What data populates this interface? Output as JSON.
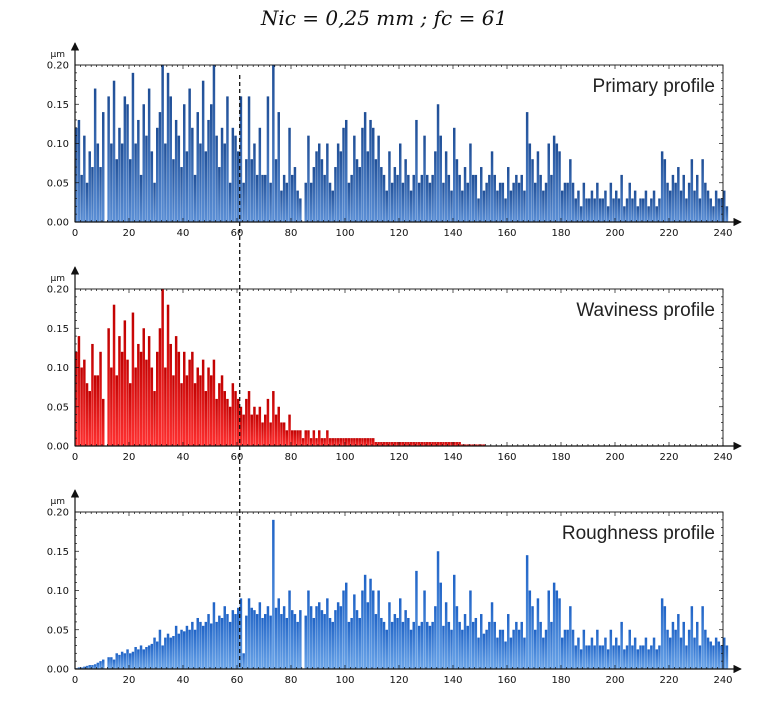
{
  "figure": {
    "title": "Nic = 0,25 mm ; fc = 61",
    "cutoff_index": 61
  },
  "chart_data": [
    {
      "type": "bar",
      "label": "Primary profile",
      "color_top": "#1f4e96",
      "color_bottom": "#5b8fd6",
      "unit": "µm",
      "xlim": [
        0,
        240
      ],
      "ylim": [
        0,
        0.2
      ],
      "x_ticks": [
        "0",
        "20",
        "40",
        "60",
        "80",
        "100",
        "120",
        "140",
        "160",
        "180",
        "200",
        "220",
        "240"
      ],
      "y_ticks": [
        "0.00",
        "0.05",
        "0.10",
        "0.15",
        "0.20"
      ],
      "values": [
        0.12,
        0.13,
        0.06,
        0.11,
        0.05,
        0.09,
        0.07,
        0.17,
        0.1,
        0.07,
        0.14,
        0.0,
        0.16,
        0.1,
        0.18,
        0.08,
        0.12,
        0.1,
        0.16,
        0.15,
        0.08,
        0.19,
        0.1,
        0.13,
        0.06,
        0.15,
        0.11,
        0.17,
        0.09,
        0.05,
        0.12,
        0.14,
        0.2,
        0.1,
        0.19,
        0.16,
        0.08,
        0.13,
        0.11,
        0.07,
        0.15,
        0.09,
        0.17,
        0.12,
        0.06,
        0.14,
        0.1,
        0.18,
        0.09,
        0.13,
        0.15,
        0.2,
        0.11,
        0.07,
        0.12,
        0.1,
        0.16,
        0.05,
        0.12,
        0.11,
        0.09,
        0.16,
        0.05,
        0.08,
        0.16,
        0.08,
        0.1,
        0.06,
        0.12,
        0.06,
        0.06,
        0.16,
        0.05,
        0.2,
        0.08,
        0.14,
        0.04,
        0.06,
        0.05,
        0.12,
        0.06,
        0.07,
        0.04,
        0.03,
        0.0,
        0.05,
        0.11,
        0.05,
        0.07,
        0.09,
        0.1,
        0.08,
        0.06,
        0.1,
        0.05,
        0.04,
        0.07,
        0.1,
        0.09,
        0.12,
        0.13,
        0.05,
        0.06,
        0.11,
        0.08,
        0.07,
        0.12,
        0.14,
        0.09,
        0.13,
        0.12,
        0.08,
        0.11,
        0.07,
        0.06,
        0.04,
        0.09,
        0.05,
        0.07,
        0.06,
        0.1,
        0.05,
        0.08,
        0.06,
        0.04,
        0.06,
        0.13,
        0.05,
        0.06,
        0.11,
        0.06,
        0.05,
        0.06,
        0.09,
        0.15,
        0.11,
        0.05,
        0.09,
        0.06,
        0.04,
        0.12,
        0.08,
        0.06,
        0.04,
        0.07,
        0.05,
        0.1,
        0.06,
        0.06,
        0.03,
        0.07,
        0.04,
        0.05,
        0.06,
        0.09,
        0.06,
        0.04,
        0.05,
        0.05,
        0.03,
        0.07,
        0.04,
        0.05,
        0.06,
        0.05,
        0.06,
        0.04,
        0.14,
        0.1,
        0.08,
        0.05,
        0.09,
        0.06,
        0.04,
        0.05,
        0.1,
        0.06,
        0.11,
        0.1,
        0.09,
        0.04,
        0.05,
        0.05,
        0.08,
        0.05,
        0.03,
        0.04,
        0.02,
        0.05,
        0.03,
        0.03,
        0.04,
        0.03,
        0.05,
        0.03,
        0.03,
        0.04,
        0.02,
        0.05,
        0.03,
        0.04,
        0.03,
        0.06,
        0.02,
        0.03,
        0.05,
        0.03,
        0.04,
        0.02,
        0.03,
        0.03,
        0.04,
        0.02,
        0.03,
        0.04,
        0.02,
        0.03,
        0.09,
        0.08,
        0.05,
        0.04,
        0.06,
        0.05,
        0.07,
        0.04,
        0.06,
        0.03,
        0.05,
        0.08,
        0.04,
        0.06,
        0.03,
        0.08,
        0.05,
        0.04,
        0.03,
        0.02,
        0.04,
        0.03,
        0.03,
        0.04,
        0.02
      ]
    },
    {
      "type": "bar",
      "label": "Waviness profile",
      "color_top": "#c00000",
      "color_bottom": "#ff3030",
      "unit": "µm",
      "xlim": [
        0,
        240
      ],
      "ylim": [
        0,
        0.2
      ],
      "x_ticks": [
        "0",
        "20",
        "40",
        "60",
        "80",
        "100",
        "120",
        "140",
        "160",
        "180",
        "200",
        "220",
        "240"
      ],
      "y_ticks": [
        "0.00",
        "0.05",
        "0.10",
        "0.15",
        "0.20"
      ],
      "values": [
        0.12,
        0.14,
        0.1,
        0.11,
        0.08,
        0.07,
        0.13,
        0.09,
        0.09,
        0.12,
        0.06,
        0.0,
        0.15,
        0.1,
        0.18,
        0.09,
        0.14,
        0.12,
        0.16,
        0.11,
        0.08,
        0.17,
        0.1,
        0.13,
        0.12,
        0.15,
        0.11,
        0.14,
        0.1,
        0.07,
        0.12,
        0.15,
        0.2,
        0.1,
        0.18,
        0.13,
        0.09,
        0.14,
        0.12,
        0.08,
        0.12,
        0.09,
        0.11,
        0.12,
        0.08,
        0.1,
        0.09,
        0.11,
        0.07,
        0.1,
        0.09,
        0.11,
        0.06,
        0.08,
        0.09,
        0.07,
        0.06,
        0.05,
        0.08,
        0.07,
        0.06,
        0.05,
        0.04,
        0.06,
        0.07,
        0.04,
        0.05,
        0.04,
        0.05,
        0.03,
        0.04,
        0.06,
        0.03,
        0.07,
        0.04,
        0.05,
        0.03,
        0.03,
        0.02,
        0.04,
        0.02,
        0.02,
        0.02,
        0.02,
        0.01,
        0.02,
        0.02,
        0.01,
        0.02,
        0.01,
        0.02,
        0.01,
        0.01,
        0.02,
        0.01,
        0.01,
        0.01,
        0.01,
        0.01,
        0.01,
        0.01,
        0.01,
        0.01,
        0.01,
        0.01,
        0.01,
        0.01,
        0.01,
        0.01,
        0.01,
        0.01,
        0.005,
        0.005,
        0.005,
        0.005,
        0.005,
        0.005,
        0.005,
        0.005,
        0.005,
        0.005,
        0.005,
        0.005,
        0.005,
        0.005,
        0.005,
        0.005,
        0.005,
        0.005,
        0.005,
        0.005,
        0.005,
        0.005,
        0.005,
        0.005,
        0.005,
        0.005,
        0.005,
        0.005,
        0.005,
        0.005,
        0.005,
        0.005,
        0.002,
        0.002,
        0.002,
        0.002,
        0.002,
        0.002,
        0.002,
        0.002,
        0.002,
        0,
        0,
        0,
        0,
        0,
        0,
        0,
        0,
        0,
        0,
        0,
        0,
        0,
        0,
        0,
        0,
        0,
        0,
        0,
        0,
        0,
        0,
        0,
        0,
        0,
        0,
        0,
        0,
        0,
        0,
        0,
        0,
        0,
        0,
        0,
        0,
        0,
        0,
        0,
        0,
        0,
        0,
        0,
        0,
        0,
        0,
        0,
        0,
        0,
        0,
        0,
        0,
        0,
        0,
        0,
        0,
        0,
        0,
        0,
        0,
        0,
        0,
        0,
        0,
        0,
        0,
        0,
        0,
        0,
        0,
        0,
        0,
        0,
        0,
        0,
        0,
        0,
        0,
        0,
        0,
        0,
        0,
        0,
        0,
        0,
        0,
        0,
        0,
        0,
        0,
        0,
        0,
        0,
        0,
        0,
        0,
        0,
        0,
        0,
        0,
        0,
        0
      ]
    },
    {
      "type": "bar",
      "label": "Roughness profile",
      "color_top": "#1f63c6",
      "color_bottom": "#6aa4e8",
      "unit": "µm",
      "xlim": [
        0,
        240
      ],
      "ylim": [
        0,
        0.2
      ],
      "x_ticks": [
        "0",
        "20",
        "40",
        "60",
        "80",
        "100",
        "120",
        "140",
        "160",
        "180",
        "200",
        "220",
        "240"
      ],
      "y_ticks": [
        "0.00",
        "0.05",
        "0.10",
        "0.15",
        "0.20"
      ],
      "values": [
        0.001,
        0.002,
        0.002,
        0.003,
        0.004,
        0.005,
        0.005,
        0.006,
        0.008,
        0.01,
        0.012,
        0.0,
        0.015,
        0.015,
        0.012,
        0.02,
        0.018,
        0.022,
        0.02,
        0.025,
        0.02,
        0.022,
        0.028,
        0.025,
        0.03,
        0.025,
        0.028,
        0.03,
        0.032,
        0.04,
        0.035,
        0.05,
        0.03,
        0.04,
        0.045,
        0.04,
        0.042,
        0.055,
        0.045,
        0.05,
        0.048,
        0.055,
        0.05,
        0.06,
        0.05,
        0.065,
        0.06,
        0.055,
        0.06,
        0.07,
        0.058,
        0.085,
        0.06,
        0.068,
        0.065,
        0.08,
        0.07,
        0.06,
        0.075,
        0.07,
        0.078,
        0.09,
        0.02,
        0.068,
        0.09,
        0.078,
        0.075,
        0.07,
        0.085,
        0.065,
        0.07,
        0.08,
        0.068,
        0.19,
        0.078,
        0.09,
        0.07,
        0.08,
        0.065,
        0.1,
        0.075,
        0.07,
        0.06,
        0.075,
        0.0,
        0.068,
        0.1,
        0.08,
        0.065,
        0.08,
        0.085,
        0.075,
        0.07,
        0.09,
        0.065,
        0.06,
        0.075,
        0.085,
        0.08,
        0.1,
        0.11,
        0.06,
        0.065,
        0.095,
        0.075,
        0.065,
        0.1,
        0.12,
        0.085,
        0.115,
        0.1,
        0.07,
        0.1,
        0.065,
        0.06,
        0.05,
        0.085,
        0.06,
        0.07,
        0.065,
        0.09,
        0.06,
        0.075,
        0.065,
        0.05,
        0.06,
        0.125,
        0.055,
        0.06,
        0.1,
        0.06,
        0.055,
        0.06,
        0.08,
        0.15,
        0.11,
        0.055,
        0.085,
        0.06,
        0.05,
        0.12,
        0.08,
        0.06,
        0.05,
        0.07,
        0.055,
        0.1,
        0.06,
        0.065,
        0.04,
        0.07,
        0.045,
        0.05,
        0.06,
        0.085,
        0.06,
        0.04,
        0.05,
        0.05,
        0.035,
        0.07,
        0.04,
        0.05,
        0.06,
        0.05,
        0.06,
        0.04,
        0.145,
        0.1,
        0.08,
        0.05,
        0.09,
        0.06,
        0.04,
        0.05,
        0.1,
        0.06,
        0.11,
        0.1,
        0.09,
        0.04,
        0.05,
        0.05,
        0.08,
        0.05,
        0.03,
        0.04,
        0.025,
        0.05,
        0.03,
        0.03,
        0.04,
        0.03,
        0.05,
        0.03,
        0.03,
        0.04,
        0.025,
        0.05,
        0.03,
        0.04,
        0.03,
        0.06,
        0.025,
        0.03,
        0.05,
        0.03,
        0.04,
        0.025,
        0.03,
        0.03,
        0.04,
        0.025,
        0.03,
        0.04,
        0.025,
        0.03,
        0.09,
        0.08,
        0.05,
        0.04,
        0.06,
        0.05,
        0.07,
        0.04,
        0.06,
        0.03,
        0.05,
        0.08,
        0.04,
        0.06,
        0.03,
        0.08,
        0.05,
        0.04,
        0.035,
        0.03,
        0.04,
        0.035,
        0.03,
        0.04,
        0.03
      ]
    }
  ]
}
